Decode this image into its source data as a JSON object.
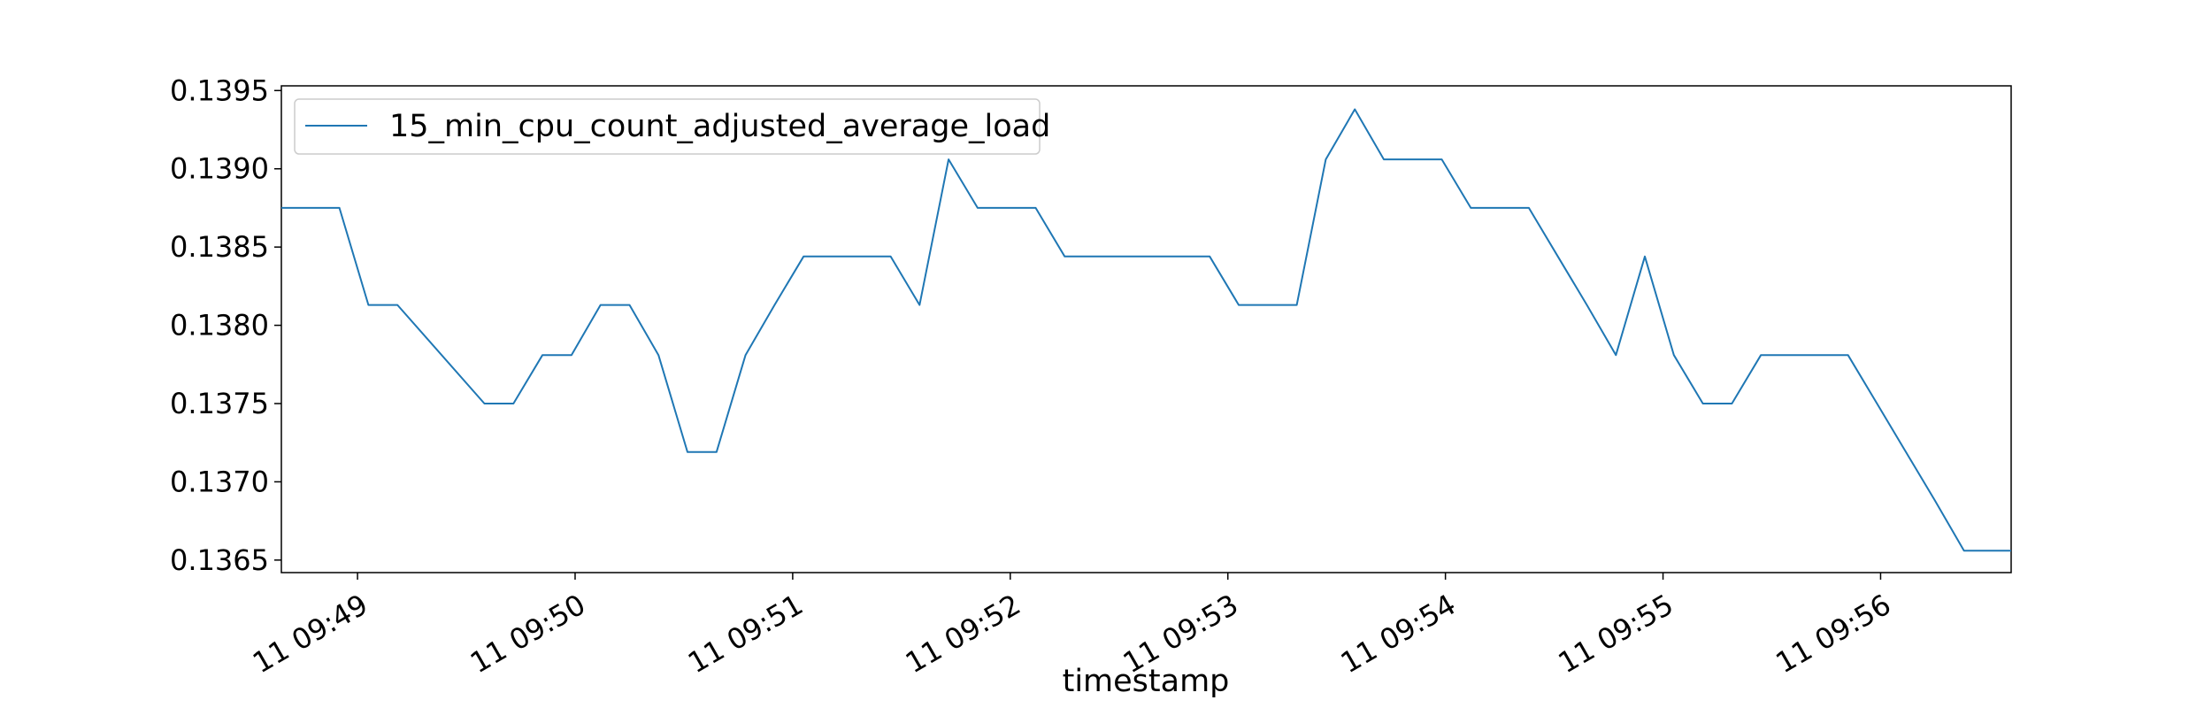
{
  "chart_data": {
    "type": "line",
    "xlabel": "timestamp",
    "ylabel": "",
    "x_ticks": [
      "11 09:49",
      "11 09:50",
      "11 09:51",
      "11 09:52",
      "11 09:53",
      "11 09:54",
      "11 09:55",
      "11 09:56"
    ],
    "x_range": [
      "2021-03-11 09:48:39",
      "2021-03-11 09:56:36"
    ],
    "y_ticks": [
      "0.1365",
      "0.1370",
      "0.1375",
      "0.1380",
      "0.1385",
      "0.1390",
      "0.1395"
    ],
    "ylim": [
      0.13642,
      0.13953
    ],
    "legend": {
      "position": "top-left",
      "entries": [
        "15_min_cpu_count_adjusted_average_load"
      ]
    },
    "grid": false,
    "colors": {
      "series": "#1f77b4"
    },
    "series": [
      {
        "name": "15_min_cpu_count_adjusted_average_load",
        "x": [
          "2021-03-11 09:48:39",
          "2021-03-11 09:48:55",
          "2021-03-11 09:49:03",
          "2021-03-11 09:49:11",
          "2021-03-11 09:49:35",
          "2021-03-11 09:49:43",
          "2021-03-11 09:49:51",
          "2021-03-11 09:49:59",
          "2021-03-11 09:50:07",
          "2021-03-11 09:50:15",
          "2021-03-11 09:50:23",
          "2021-03-11 09:50:31",
          "2021-03-11 09:50:39",
          "2021-03-11 09:50:47",
          "2021-03-11 09:50:55",
          "2021-03-11 09:51:03",
          "2021-03-11 09:51:11",
          "2021-03-11 09:51:19",
          "2021-03-11 09:51:27",
          "2021-03-11 09:51:35",
          "2021-03-11 09:51:43",
          "2021-03-11 09:51:51",
          "2021-03-11 09:51:59",
          "2021-03-11 09:52:07",
          "2021-03-11 09:52:15",
          "2021-03-11 09:52:23",
          "2021-03-11 09:52:31",
          "2021-03-11 09:52:39",
          "2021-03-11 09:52:47",
          "2021-03-11 09:52:55",
          "2021-03-11 09:53:03",
          "2021-03-11 09:53:11",
          "2021-03-11 09:53:19",
          "2021-03-11 09:53:27",
          "2021-03-11 09:53:35",
          "2021-03-11 09:53:43",
          "2021-03-11 09:53:51",
          "2021-03-11 09:53:59",
          "2021-03-11 09:54:07",
          "2021-03-11 09:54:15",
          "2021-03-11 09:54:23",
          "2021-03-11 09:54:31",
          "2021-03-11 09:54:39",
          "2021-03-11 09:54:47",
          "2021-03-11 09:54:55",
          "2021-03-11 09:55:03",
          "2021-03-11 09:55:11",
          "2021-03-11 09:55:19",
          "2021-03-11 09:55:27",
          "2021-03-11 09:55:35",
          "2021-03-11 09:55:43",
          "2021-03-11 09:55:51",
          "2021-03-11 09:55:59",
          "2021-03-11 09:56:07",
          "2021-03-11 09:56:15",
          "2021-03-11 09:56:23",
          "2021-03-11 09:56:36"
        ],
        "values": [
          0.13875,
          0.13875,
          0.13813,
          0.13813,
          0.1375,
          0.1375,
          0.13781,
          0.13781,
          0.13813,
          0.13813,
          0.13781,
          0.13719,
          0.13719,
          0.13781,
          0.13813,
          0.13844,
          0.13844,
          0.13844,
          0.13844,
          0.13813,
          0.13906,
          0.13875,
          0.13875,
          0.13875,
          0.13844,
          0.13844,
          0.13844,
          0.13844,
          0.13844,
          0.13844,
          0.13813,
          0.13813,
          0.13813,
          0.13906,
          0.13938,
          0.13906,
          0.13906,
          0.13906,
          0.13875,
          0.13875,
          0.13875,
          0.13844,
          0.13813,
          0.13781,
          0.13844,
          0.13781,
          0.1375,
          0.1375,
          0.13781,
          0.13781,
          0.13781,
          0.13781,
          0.1375,
          0.13719,
          0.13688,
          0.13656,
          0.13656
        ]
      }
    ]
  }
}
